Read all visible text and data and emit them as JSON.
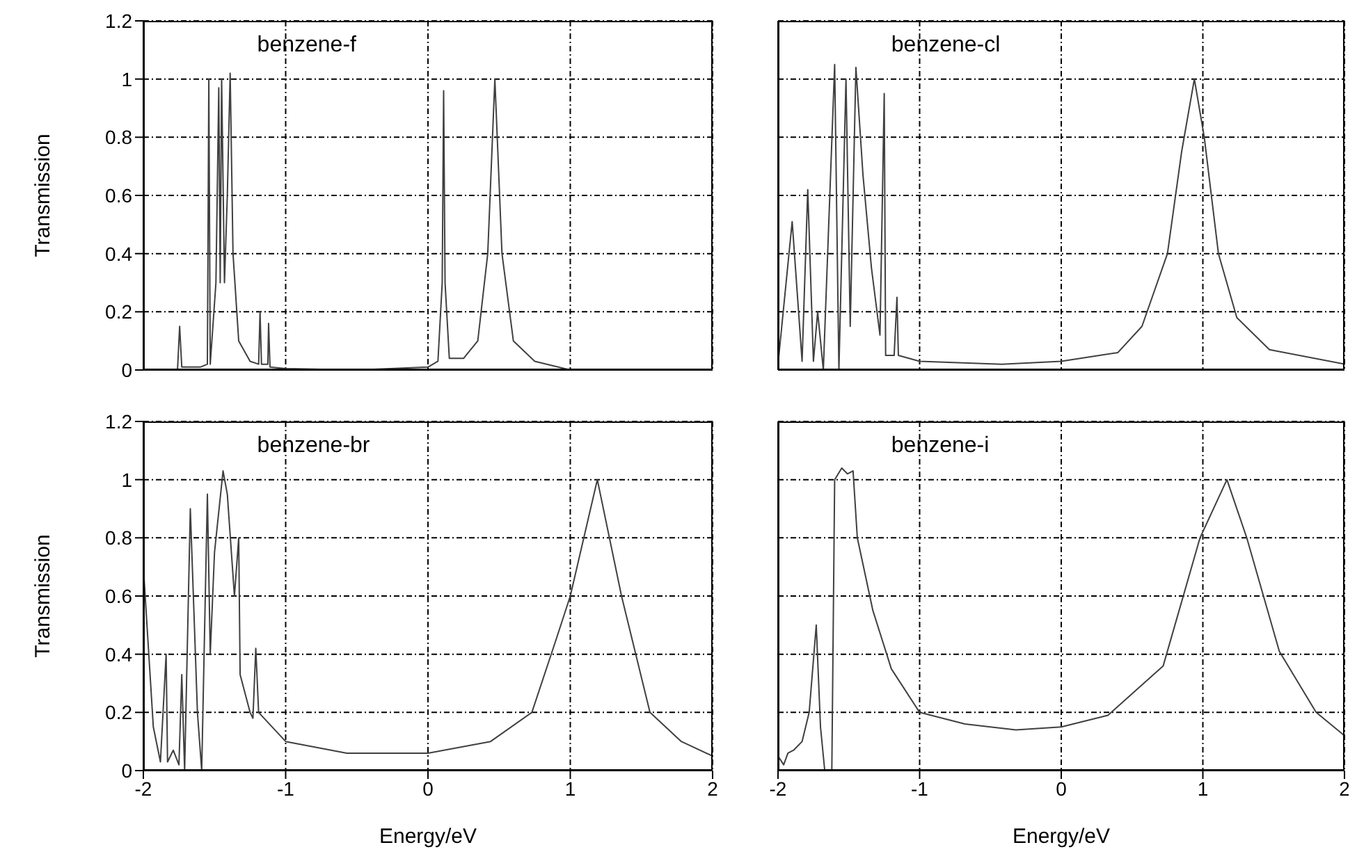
{
  "chart_data": [
    {
      "type": "line",
      "title": "benzene-f",
      "ylabel": "Transmission",
      "xlim": [
        -2,
        2
      ],
      "ylim": [
        0,
        1.2
      ],
      "xticks": [
        -2,
        -1,
        0,
        1,
        2
      ],
      "yticks": [
        0,
        0.2,
        0.4,
        0.6,
        0.8,
        1,
        1.2
      ],
      "grid": true,
      "tick_labels": "y",
      "x": [
        -2,
        -1.76,
        -1.745,
        -1.73,
        -1.6,
        -1.55,
        -1.54,
        -1.53,
        -1.49,
        -1.47,
        -1.46,
        -1.45,
        -1.43,
        -1.41,
        -1.39,
        -1.37,
        -1.33,
        -1.25,
        -1.19,
        -1.18,
        -1.17,
        -1.125,
        -1.12,
        -1.11,
        -1,
        -0.5,
        0,
        0.07,
        0.1,
        0.11,
        0.12,
        0.15,
        0.25,
        0.35,
        0.42,
        0.47,
        0.52,
        0.6,
        0.75,
        1,
        2
      ],
      "series": [
        {
          "color": "#404040",
          "values": [
            0,
            0,
            0.15,
            0.01,
            0.01,
            0.02,
            1,
            0.02,
            0.3,
            0.97,
            0.3,
            1,
            0.3,
            0.6,
            1.02,
            0.4,
            0.1,
            0.03,
            0.02,
            0.2,
            0.02,
            0.02,
            0.16,
            0.01,
            0.005,
            0,
            0.01,
            0.03,
            0.3,
            0.96,
            0.3,
            0.04,
            0.04,
            0.1,
            0.4,
            1,
            0.4,
            0.1,
            0.03,
            0,
            0
          ]
        }
      ]
    },
    {
      "type": "line",
      "title": "benzene-cl",
      "xlim": [
        -2,
        2
      ],
      "ylim": [
        0,
        1.2
      ],
      "xticks": [
        -2,
        -1,
        0,
        1,
        2
      ],
      "yticks": [
        0,
        0.2,
        0.4,
        0.6,
        0.8,
        1,
        1.2
      ],
      "grid": true,
      "tick_labels": false,
      "x": [
        -2,
        -1.9,
        -1.83,
        -1.79,
        -1.75,
        -1.72,
        -1.68,
        -1.6,
        -1.57,
        -1.52,
        -1.49,
        -1.45,
        -1.4,
        -1.34,
        -1.28,
        -1.25,
        -1.24,
        -1.18,
        -1.16,
        -1.15,
        -1,
        -0.42,
        0,
        0.4,
        0.57,
        0.75,
        0.85,
        0.94,
        1.01,
        1.11,
        1.24,
        1.47,
        2
      ],
      "series": [
        {
          "color": "#404040",
          "values": [
            0.02,
            0.51,
            0.03,
            0.62,
            0.03,
            0.2,
            0,
            1.05,
            0,
            1,
            0.15,
            1.04,
            0.67,
            0.35,
            0.12,
            0.95,
            0.05,
            0.05,
            0.25,
            0.05,
            0.03,
            0.02,
            0.03,
            0.06,
            0.15,
            0.4,
            0.75,
            1,
            0.8,
            0.4,
            0.18,
            0.07,
            0.02
          ]
        }
      ]
    },
    {
      "type": "line",
      "title": "benzene-br",
      "xlabel": "Energy/eV",
      "ylabel": "Transmission",
      "xlim": [
        -2,
        2
      ],
      "ylim": [
        0,
        1.2
      ],
      "xticks": [
        -2,
        -1,
        0,
        1,
        2
      ],
      "yticks": [
        0,
        0.2,
        0.4,
        0.6,
        0.8,
        1,
        1.2
      ],
      "grid": true,
      "x": [
        -2,
        -1.93,
        -1.88,
        -1.84,
        -1.83,
        -1.79,
        -1.75,
        -1.73,
        -1.71,
        -1.67,
        -1.62,
        -1.59,
        -1.55,
        -1.53,
        -1.5,
        -1.44,
        -1.41,
        -1.36,
        -1.33,
        -1.32,
        -1.25,
        -1.23,
        -1.21,
        -1.19,
        -1,
        -0.57,
        0,
        0.44,
        0.73,
        0.9,
        1,
        1.19,
        1.36,
        1.56,
        1.78,
        2
      ],
      "series": [
        {
          "color": "#404040",
          "values": [
            0.7,
            0.15,
            0.03,
            0.4,
            0.03,
            0.07,
            0.02,
            0.33,
            0,
            0.9,
            0.2,
            0,
            0.95,
            0.4,
            0.75,
            1.03,
            0.95,
            0.6,
            0.8,
            0.33,
            0.2,
            0.18,
            0.42,
            0.2,
            0.1,
            0.06,
            0.06,
            0.1,
            0.2,
            0.45,
            0.6,
            1,
            0.6,
            0.2,
            0.1,
            0.05
          ]
        }
      ]
    },
    {
      "type": "line",
      "title": "benzene-i",
      "xlabel": "Energy/eV",
      "xlim": [
        -2,
        2
      ],
      "ylim": [
        0,
        1.2
      ],
      "xticks": [
        -2,
        -1,
        0,
        1,
        2
      ],
      "yticks": [
        0,
        0.2,
        0.4,
        0.6,
        0.8,
        1,
        1.2
      ],
      "grid": true,
      "tick_labels": "x",
      "x": [
        -2,
        -1.96,
        -1.93,
        -1.89,
        -1.83,
        -1.78,
        -1.73,
        -1.7,
        -1.67,
        -1.62,
        -1.6,
        -1.55,
        -1.51,
        -1.47,
        -1.44,
        -1.33,
        -1.2,
        -1,
        -0.68,
        -0.32,
        0,
        0.33,
        0.72,
        0.98,
        1.17,
        1.31,
        1.54,
        1.8,
        2
      ],
      "series": [
        {
          "color": "#404040",
          "values": [
            0.05,
            0.02,
            0.06,
            0.07,
            0.1,
            0.2,
            0.5,
            0.15,
            0,
            0,
            1,
            1.04,
            1.02,
            1.03,
            0.8,
            0.55,
            0.35,
            0.2,
            0.16,
            0.14,
            0.15,
            0.19,
            0.36,
            0.8,
            1,
            0.8,
            0.41,
            0.2,
            0.12
          ]
        }
      ]
    }
  ]
}
